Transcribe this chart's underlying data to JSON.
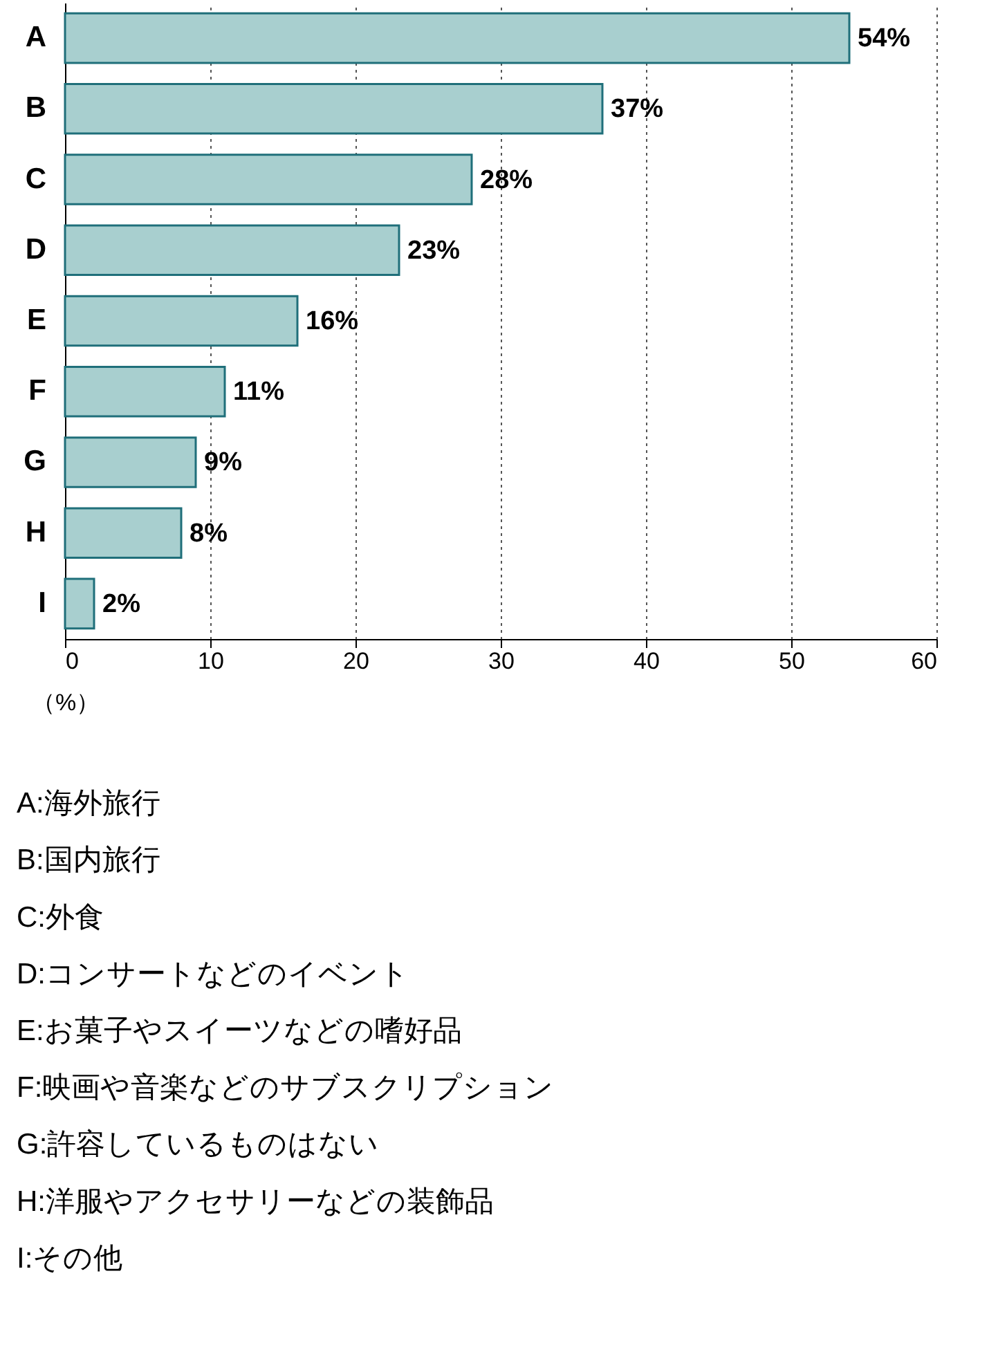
{
  "chart_data": {
    "type": "bar",
    "orientation": "horizontal",
    "categories": [
      "A",
      "B",
      "C",
      "D",
      "E",
      "F",
      "G",
      "H",
      "I"
    ],
    "series": [
      {
        "color": "#a8cfcf",
        "values": [
          54,
          37,
          28,
          23,
          16,
          11,
          9,
          8,
          2
        ],
        "value_labels": [
          "54%",
          "37%",
          "28%",
          "23%",
          "16%",
          "11%",
          "9%",
          "8%",
          "2%"
        ]
      }
    ],
    "xlim": [
      0,
      60
    ],
    "xticks": [
      0,
      10,
      20,
      30,
      40,
      50,
      60
    ],
    "grid": "x",
    "xlabel": "（%）",
    "annotations": [
      "A:海外旅行",
      "B:国内旅行",
      "C:外食",
      "D:コンサートなどのイベント",
      "E:お菓子やスイーツなどの嗜好品",
      "F:映画や音楽などのサブスクリプション",
      "G:許容しているものはない",
      "H:洋服やアクセサリーなどの装飾品",
      "I:その他"
    ]
  }
}
